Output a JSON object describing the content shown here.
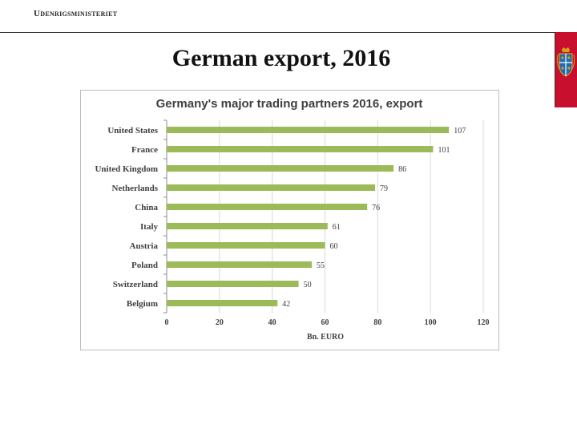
{
  "header": {
    "ministry": "Udenrigsministeriet",
    "crest_color": "#c8102e"
  },
  "slide": {
    "title": "German export, 2016"
  },
  "chart_data": {
    "type": "bar",
    "orientation": "horizontal",
    "title": "Germany's major trading partners 2016, export",
    "categories": [
      "United States",
      "France",
      "United Kingdom",
      "Netherlands",
      "China",
      "Italy",
      "Austria",
      "Poland",
      "Switzerland",
      "Belgium"
    ],
    "values": [
      107,
      101,
      86,
      79,
      76,
      61,
      60,
      55,
      50,
      42
    ],
    "xlabel": "Bn. EURO",
    "ylabel": "",
    "xlim": [
      0,
      120
    ],
    "xticks": [
      0,
      20,
      40,
      60,
      80,
      100,
      120
    ],
    "grid": true,
    "bar_color": "#9bbb59"
  }
}
